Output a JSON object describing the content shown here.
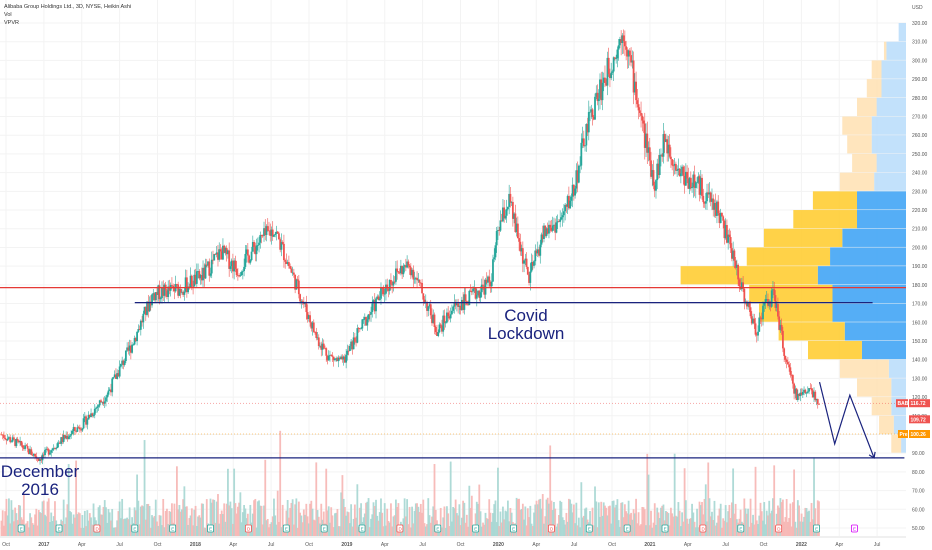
{
  "legend": {
    "symbol_line": "Alibaba Group Holdings Ltd., 3D, NYSE, Heikin Ashi",
    "vol": "Vol",
    "vpvr": "VPVR"
  },
  "annotations": {
    "covid": [
      "Covid",
      "Lockdown"
    ],
    "december": [
      "December",
      "2016"
    ]
  },
  "colors": {
    "up": "#26a69a",
    "down": "#ef5350",
    "resistance": "#e53935",
    "support": "#1a237e",
    "vp_up": "#42a5f5",
    "vp_down": "#ffca28",
    "vp_up_light": "#bbdefb",
    "vp_down_light": "#ffe0b2"
  },
  "chart_data": {
    "type": "candlestick",
    "price_axis": {
      "unit": "USD",
      "ticks": [
        50,
        60,
        70,
        80,
        90,
        100,
        110,
        120,
        130,
        140,
        150,
        160,
        170,
        180,
        190,
        200,
        210,
        220,
        230,
        240,
        250,
        260,
        270,
        280,
        290,
        300,
        310,
        320
      ],
      "ylim": [
        45,
        328
      ]
    },
    "time_axis": {
      "labels": [
        "Oct",
        "2017",
        "Apr",
        "Jul",
        "Oct",
        "2018",
        "Apr",
        "Jul",
        "Oct",
        "2019",
        "Apr",
        "Jul",
        "Oct",
        "2020",
        "Apr",
        "Jul",
        "Oct",
        "2021",
        "Apr",
        "Jul",
        "Oct",
        "2022",
        "Apr",
        "Jul"
      ],
      "label_years": [
        2016.75,
        2017.0,
        2017.25,
        2017.5,
        2017.75,
        2018.0,
        2018.25,
        2018.5,
        2018.75,
        2019.0,
        2019.25,
        2019.5,
        2019.75,
        2020.0,
        2020.25,
        2020.5,
        2020.75,
        2021.0,
        2021.25,
        2021.5,
        2021.75,
        2022.0,
        2022.25,
        2022.5
      ]
    },
    "price_path": [
      [
        2016.72,
        100
      ],
      [
        2016.85,
        94
      ],
      [
        2016.97,
        87
      ],
      [
        2017.1,
        96
      ],
      [
        2017.25,
        105
      ],
      [
        2017.42,
        122
      ],
      [
        2017.58,
        148
      ],
      [
        2017.72,
        175
      ],
      [
        2017.9,
        178
      ],
      [
        2018.05,
        185
      ],
      [
        2018.17,
        198
      ],
      [
        2018.28,
        188
      ],
      [
        2018.42,
        203
      ],
      [
        2018.52,
        210
      ],
      [
        2018.62,
        190
      ],
      [
        2018.8,
        152
      ],
      [
        2018.88,
        142
      ],
      [
        2018.97,
        138
      ],
      [
        2019.1,
        158
      ],
      [
        2019.25,
        178
      ],
      [
        2019.35,
        188
      ],
      [
        2019.42,
        190
      ],
      [
        2019.5,
        175
      ],
      [
        2019.6,
        155
      ],
      [
        2019.7,
        168
      ],
      [
        2019.8,
        172
      ],
      [
        2019.95,
        182
      ],
      [
        2020.0,
        210
      ],
      [
        2020.07,
        225
      ],
      [
        2020.13,
        205
      ],
      [
        2020.2,
        183
      ],
      [
        2020.3,
        208
      ],
      [
        2020.42,
        215
      ],
      [
        2020.5,
        232
      ],
      [
        2020.58,
        262
      ],
      [
        2020.65,
        280
      ],
      [
        2020.75,
        300
      ],
      [
        2020.83,
        316
      ],
      [
        2020.88,
        295
      ],
      [
        2020.95,
        265
      ],
      [
        2021.03,
        235
      ],
      [
        2021.1,
        258
      ],
      [
        2021.2,
        240
      ],
      [
        2021.33,
        232
      ],
      [
        2021.45,
        220
      ],
      [
        2021.55,
        195
      ],
      [
        2021.62,
        175
      ],
      [
        2021.7,
        155
      ],
      [
        2021.75,
        168
      ],
      [
        2021.82,
        175
      ],
      [
        2021.9,
        138
      ],
      [
        2021.97,
        120
      ],
      [
        2022.05,
        125
      ],
      [
        2022.12,
        118
      ]
    ],
    "last_price": 116.72,
    "price_labels": [
      {
        "text": "BABA",
        "value": 116.72,
        "color": "#ef5350"
      },
      {
        "text": "109.72",
        "value": 109.72,
        "color": "#ef5350"
      },
      {
        "text": "Pre",
        "value": 100.26,
        "color": "#ff9800"
      },
      {
        "text": "100.26",
        "value": 100.26,
        "color": "#ff9800"
      }
    ],
    "horizontal_lines": [
      {
        "name": "resistance",
        "value": 178.5,
        "color": "#e53935"
      },
      {
        "name": "support-2017",
        "value": 170.5,
        "color": "#1a237e",
        "from": 2017.6,
        "to": 2022.47
      },
      {
        "name": "support-dec-2016",
        "value": 87.5,
        "color": "#1a237e",
        "from": 2016.7,
        "to": 2022.68
      }
    ],
    "projection_path": [
      [
        2022.12,
        128
      ],
      [
        2022.22,
        95
      ],
      [
        2022.32,
        121
      ],
      [
        2022.48,
        87.5
      ]
    ],
    "volume_profile": {
      "rows": [
        {
          "price": 310,
          "up": 0.03,
          "down": 0.0,
          "light": true
        },
        {
          "price": 300,
          "up": 0.08,
          "down": 0.01,
          "light": true
        },
        {
          "price": 290,
          "up": 0.1,
          "down": 0.04,
          "light": true
        },
        {
          "price": 280,
          "up": 0.1,
          "down": 0.06,
          "light": true
        },
        {
          "price": 270,
          "up": 0.12,
          "down": 0.08,
          "light": true
        },
        {
          "price": 260,
          "up": 0.14,
          "down": 0.12,
          "light": true
        },
        {
          "price": 250,
          "up": 0.14,
          "down": 0.1,
          "light": true
        },
        {
          "price": 240,
          "up": 0.12,
          "down": 0.1,
          "light": true
        },
        {
          "price": 230,
          "up": 0.13,
          "down": 0.14,
          "light": true
        },
        {
          "price": 220,
          "up": 0.2,
          "down": 0.18,
          "light": false
        },
        {
          "price": 210,
          "up": 0.2,
          "down": 0.26,
          "light": false
        },
        {
          "price": 200,
          "up": 0.26,
          "down": 0.32,
          "light": false
        },
        {
          "price": 190,
          "up": 0.31,
          "down": 0.34,
          "light": false
        },
        {
          "price": 180,
          "up": 0.36,
          "down": 0.56,
          "light": false
        },
        {
          "price": 170,
          "up": 0.3,
          "down": 0.34,
          "light": false
        },
        {
          "price": 160,
          "up": 0.3,
          "down": 0.3,
          "light": false
        },
        {
          "price": 150,
          "up": 0.25,
          "down": 0.27,
          "light": false
        },
        {
          "price": 140,
          "up": 0.18,
          "down": 0.22,
          "light": false
        },
        {
          "price": 130,
          "up": 0.07,
          "down": 0.2,
          "light": true
        },
        {
          "price": 120,
          "up": 0.06,
          "down": 0.14,
          "light": true
        },
        {
          "price": 110,
          "up": 0.06,
          "down": 0.08,
          "light": true
        },
        {
          "price": 100,
          "up": 0.05,
          "down": 0.06,
          "light": true
        },
        {
          "price": 90,
          "up": 0.02,
          "down": 0.04,
          "light": true
        }
      ]
    },
    "event_markers": [
      {
        "t": 2016.85,
        "kind": "E"
      },
      {
        "t": 2017.1,
        "kind": "E"
      },
      {
        "t": 2017.35,
        "kind": "D"
      },
      {
        "t": 2017.6,
        "kind": "E"
      },
      {
        "t": 2017.85,
        "kind": "E"
      },
      {
        "t": 2018.1,
        "kind": "E"
      },
      {
        "t": 2018.35,
        "kind": "D"
      },
      {
        "t": 2018.6,
        "kind": "E"
      },
      {
        "t": 2018.85,
        "kind": "E"
      },
      {
        "t": 2019.1,
        "kind": "E"
      },
      {
        "t": 2019.35,
        "kind": "D"
      },
      {
        "t": 2019.6,
        "kind": "E"
      },
      {
        "t": 2019.85,
        "kind": "E"
      },
      {
        "t": 2020.1,
        "kind": "E"
      },
      {
        "t": 2020.35,
        "kind": "D"
      },
      {
        "t": 2020.6,
        "kind": "E"
      },
      {
        "t": 2020.85,
        "kind": "E"
      },
      {
        "t": 2021.1,
        "kind": "E"
      },
      {
        "t": 2021.35,
        "kind": "D"
      },
      {
        "t": 2021.6,
        "kind": "E"
      },
      {
        "t": 2021.85,
        "kind": "D"
      },
      {
        "t": 2022.1,
        "kind": "E"
      },
      {
        "t": 2022.35,
        "kind": "E",
        "future": true
      }
    ],
    "grid": true,
    "volume_pane": true
  }
}
